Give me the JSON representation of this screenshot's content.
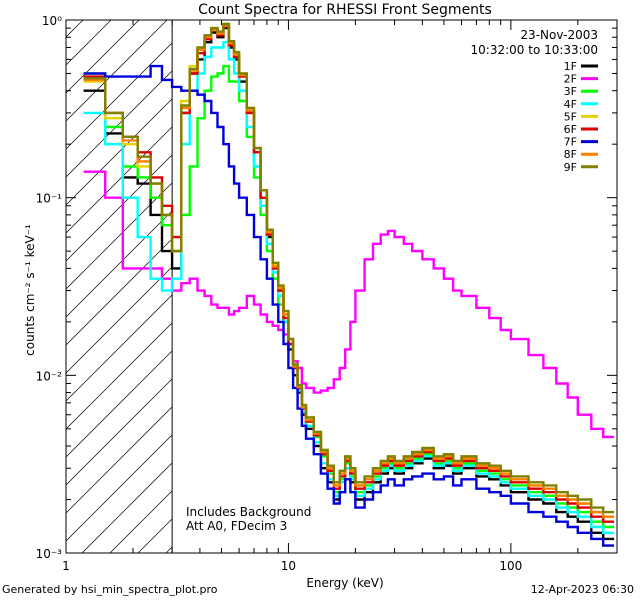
{
  "chart_data": {
    "type": "line",
    "title": "Count Spectra for RHESSI Front Segments",
    "xlabel": "Energy (keV)",
    "ylabel": "counts cm⁻² s⁻¹ keV⁻¹",
    "xscale": "log",
    "yscale": "log",
    "xlim": [
      1,
      300
    ],
    "ylim": [
      0.001,
      1
    ],
    "xticks": [
      {
        "value": 1,
        "label": "1"
      },
      {
        "value": 10,
        "label": "10"
      },
      {
        "value": 100,
        "label": "100"
      }
    ],
    "yticks": [
      {
        "value": 1,
        "label": "10⁰"
      },
      {
        "value": 0.1,
        "label": "10⁻¹"
      },
      {
        "value": 0.01,
        "label": "10⁻²"
      },
      {
        "value": 0.001,
        "label": "10⁻³"
      }
    ],
    "date": "23-Nov-2003",
    "time_range": "10:32:00 to 10:33:00",
    "annotations": [
      "Includes Background",
      "Att A0, FDecim 3"
    ],
    "attenuator_edge_keV": 3,
    "legend_position": "top-right",
    "series": [
      {
        "name": "1F",
        "color": "#000000",
        "x": [
          1.2,
          1.5,
          1.8,
          2.1,
          2.4,
          2.7,
          3.0,
          3.3,
          3.6,
          3.9,
          4.2,
          4.5,
          4.8,
          5.1,
          5.4,
          5.7,
          6.0,
          6.5,
          7,
          7.5,
          8,
          8.5,
          9,
          9.5,
          10,
          10.5,
          11,
          11.5,
          12,
          13,
          14,
          15,
          16,
          17,
          18,
          19,
          20,
          22,
          24,
          26,
          28,
          30,
          33,
          36,
          40,
          45,
          50,
          55,
          60,
          70,
          80,
          90,
          100,
          120,
          140,
          160,
          180,
          200,
          230,
          260
        ],
        "y": [
          0.4,
          0.23,
          0.13,
          0.12,
          0.08,
          0.05,
          0.04,
          0.3,
          0.5,
          0.6,
          0.75,
          0.85,
          0.8,
          0.9,
          0.7,
          0.6,
          0.45,
          0.3,
          0.18,
          0.1,
          0.06,
          0.04,
          0.03,
          0.02,
          0.014,
          0.01,
          0.008,
          0.006,
          0.005,
          0.004,
          0.003,
          0.0025,
          0.002,
          0.0025,
          0.003,
          0.0025,
          0.002,
          0.0022,
          0.0025,
          0.0028,
          0.003,
          0.0028,
          0.003,
          0.0032,
          0.0034,
          0.003,
          0.0031,
          0.0028,
          0.003,
          0.0027,
          0.0026,
          0.0024,
          0.0022,
          0.002,
          0.0019,
          0.0017,
          0.0016,
          0.0015,
          0.0013,
          0.0012
        ]
      },
      {
        "name": "2F",
        "color": "#ff00ff",
        "x": [
          1.2,
          1.5,
          1.8,
          2.1,
          2.4,
          2.7,
          3.0,
          3.3,
          3.6,
          3.9,
          4.2,
          4.5,
          4.8,
          5.1,
          5.4,
          5.7,
          6.0,
          6.5,
          7,
          7.5,
          8,
          8.5,
          9,
          9.5,
          10,
          10.5,
          11,
          11.5,
          12,
          13,
          14,
          15,
          16,
          17,
          18,
          19,
          20,
          22,
          24,
          26,
          28,
          30,
          33,
          36,
          40,
          45,
          50,
          55,
          60,
          70,
          80,
          90,
          100,
          120,
          140,
          160,
          180,
          200,
          230,
          260
        ],
        "y": [
          0.14,
          0.1,
          0.04,
          0.04,
          0.04,
          0.035,
          0.03,
          0.033,
          0.035,
          0.03,
          0.028,
          0.025,
          0.024,
          0.024,
          0.022,
          0.023,
          0.024,
          0.028,
          0.025,
          0.022,
          0.02,
          0.019,
          0.018,
          0.017,
          0.016,
          0.012,
          0.011,
          0.009,
          0.0085,
          0.008,
          0.0082,
          0.0085,
          0.0095,
          0.011,
          0.014,
          0.02,
          0.03,
          0.045,
          0.055,
          0.062,
          0.065,
          0.06,
          0.055,
          0.05,
          0.045,
          0.04,
          0.035,
          0.03,
          0.028,
          0.024,
          0.021,
          0.018,
          0.016,
          0.013,
          0.011,
          0.009,
          0.0075,
          0.006,
          0.005,
          0.0045
        ]
      },
      {
        "name": "3F",
        "color": "#00ff00",
        "x": [
          1.2,
          1.5,
          1.8,
          2.1,
          2.4,
          2.7,
          3.0,
          3.3,
          3.6,
          3.9,
          4.2,
          4.5,
          4.8,
          5.1,
          5.4,
          5.7,
          6.0,
          6.5,
          7,
          7.5,
          8,
          8.5,
          9,
          9.5,
          10,
          10.5,
          11,
          11.5,
          12,
          13,
          14,
          15,
          16,
          17,
          18,
          19,
          20,
          22,
          24,
          26,
          28,
          30,
          33,
          36,
          40,
          45,
          50,
          55,
          60,
          70,
          80,
          90,
          100,
          120,
          140,
          160,
          180,
          200,
          230,
          260
        ],
        "y": [
          0.5,
          0.25,
          0.15,
          0.13,
          0.1,
          0.07,
          0.05,
          0.08,
          0.15,
          0.28,
          0.4,
          0.48,
          0.5,
          0.55,
          0.45,
          0.45,
          0.35,
          0.22,
          0.13,
          0.08,
          0.05,
          0.035,
          0.025,
          0.02,
          0.015,
          0.011,
          0.0085,
          0.0065,
          0.0055,
          0.0045,
          0.0035,
          0.0028,
          0.0022,
          0.0026,
          0.0032,
          0.0027,
          0.0022,
          0.0024,
          0.0027,
          0.003,
          0.0032,
          0.003,
          0.0032,
          0.0034,
          0.0036,
          0.0032,
          0.0033,
          0.003,
          0.0032,
          0.0029,
          0.0028,
          0.0026,
          0.0024,
          0.0022,
          0.0021,
          0.0019,
          0.0018,
          0.0017,
          0.0015,
          0.0014
        ]
      },
      {
        "name": "4F",
        "color": "#00ffff",
        "x": [
          1.2,
          1.5,
          1.8,
          2.1,
          2.4,
          2.7,
          3.0,
          3.3,
          3.6,
          3.9,
          4.2,
          4.5,
          4.8,
          5.1,
          5.4,
          5.7,
          6.0,
          6.5,
          7,
          7.5,
          8,
          8.5,
          9,
          9.5,
          10,
          10.5,
          11,
          11.5,
          12,
          13,
          14,
          15,
          16,
          17,
          18,
          19,
          20,
          22,
          24,
          26,
          28,
          30,
          33,
          36,
          40,
          45,
          50,
          55,
          60,
          70,
          80,
          90,
          100,
          120,
          140,
          160,
          180,
          200,
          230,
          260
        ],
        "y": [
          0.3,
          0.2,
          0.1,
          0.06,
          0.035,
          0.03,
          0.035,
          0.2,
          0.4,
          0.5,
          0.62,
          0.7,
          0.7,
          0.75,
          0.6,
          0.5,
          0.4,
          0.25,
          0.15,
          0.09,
          0.055,
          0.038,
          0.028,
          0.02,
          0.015,
          0.011,
          0.0082,
          0.0062,
          0.0052,
          0.0042,
          0.0032,
          0.0026,
          0.0021,
          0.0025,
          0.003,
          0.0026,
          0.0021,
          0.0023,
          0.0026,
          0.0029,
          0.0031,
          0.0029,
          0.0031,
          0.0033,
          0.0035,
          0.0031,
          0.0032,
          0.0029,
          0.0031,
          0.0028,
          0.0027,
          0.0025,
          0.0023,
          0.0021,
          0.002,
          0.0018,
          0.0017,
          0.0016,
          0.0014,
          0.0013
        ]
      },
      {
        "name": "5F",
        "color": "#e6d200",
        "x": [
          1.2,
          1.5,
          1.8,
          2.1,
          2.4,
          2.7,
          3.0,
          3.3,
          3.6,
          3.9,
          4.2,
          4.5,
          4.8,
          5.1,
          5.4,
          5.7,
          6.0,
          6.5,
          7,
          7.5,
          8,
          8.5,
          9,
          9.5,
          10,
          10.5,
          11,
          11.5,
          12,
          13,
          14,
          15,
          16,
          17,
          18,
          19,
          20,
          22,
          24,
          26,
          28,
          30,
          33,
          36,
          40,
          45,
          50,
          55,
          60,
          70,
          80,
          90,
          100,
          120,
          140,
          160,
          180,
          200,
          230,
          260
        ],
        "y": [
          0.45,
          0.28,
          0.2,
          0.15,
          0.12,
          0.08,
          0.05,
          0.35,
          0.55,
          0.7,
          0.8,
          0.9,
          0.85,
          0.95,
          0.75,
          0.65,
          0.5,
          0.32,
          0.19,
          0.11,
          0.065,
          0.042,
          0.032,
          0.022,
          0.016,
          0.0115,
          0.0088,
          0.0068,
          0.0058,
          0.0048,
          0.0038,
          0.003,
          0.0024,
          0.0028,
          0.0034,
          0.0029,
          0.0024,
          0.0026,
          0.0029,
          0.0032,
          0.0034,
          0.0032,
          0.0034,
          0.0036,
          0.0038,
          0.0034,
          0.0035,
          0.0032,
          0.0034,
          0.0031,
          0.003,
          0.0028,
          0.0026,
          0.0024,
          0.0023,
          0.0021,
          0.002,
          0.0019,
          0.0017,
          0.0016
        ]
      },
      {
        "name": "6F",
        "color": "#dd0000",
        "x": [
          1.2,
          1.5,
          1.8,
          2.1,
          2.4,
          2.7,
          3.0,
          3.3,
          3.6,
          3.9,
          4.2,
          4.5,
          4.8,
          5.1,
          5.4,
          5.7,
          6.0,
          6.5,
          7,
          7.5,
          8,
          8.5,
          9,
          9.5,
          10,
          10.5,
          11,
          11.5,
          12,
          13,
          14,
          15,
          16,
          17,
          18,
          19,
          20,
          22,
          24,
          26,
          28,
          30,
          33,
          36,
          40,
          45,
          50,
          55,
          60,
          70,
          80,
          90,
          100,
          120,
          140,
          160,
          180,
          200,
          230,
          260
        ],
        "y": [
          0.48,
          0.3,
          0.22,
          0.18,
          0.13,
          0.09,
          0.06,
          0.3,
          0.5,
          0.65,
          0.78,
          0.88,
          0.82,
          0.92,
          0.72,
          0.62,
          0.48,
          0.3,
          0.18,
          0.1,
          0.062,
          0.04,
          0.03,
          0.021,
          0.015,
          0.011,
          0.0085,
          0.0065,
          0.0055,
          0.0046,
          0.0036,
          0.0029,
          0.0023,
          0.0027,
          0.0033,
          0.0028,
          0.0023,
          0.0025,
          0.0028,
          0.0031,
          0.0033,
          0.0031,
          0.0033,
          0.0035,
          0.0037,
          0.0033,
          0.0034,
          0.0031,
          0.0033,
          0.003,
          0.0029,
          0.0027,
          0.0025,
          0.0023,
          0.0022,
          0.002,
          0.0019,
          0.0018,
          0.0016,
          0.0015
        ]
      },
      {
        "name": "7F",
        "color": "#0000dd",
        "x": [
          1.2,
          1.5,
          1.8,
          2.1,
          2.4,
          2.7,
          3.0,
          3.3,
          3.6,
          3.9,
          4.2,
          4.5,
          4.8,
          5.1,
          5.4,
          5.7,
          6.0,
          6.5,
          7,
          7.5,
          8,
          8.5,
          9,
          9.5,
          10,
          10.5,
          11,
          11.5,
          12,
          13,
          14,
          15,
          16,
          17,
          18,
          19,
          20,
          22,
          24,
          26,
          28,
          30,
          33,
          36,
          40,
          45,
          50,
          55,
          60,
          70,
          80,
          90,
          100,
          120,
          140,
          160,
          180,
          200,
          230,
          260
        ],
        "y": [
          0.5,
          0.48,
          0.48,
          0.48,
          0.55,
          0.46,
          0.42,
          0.4,
          0.4,
          0.38,
          0.35,
          0.3,
          0.25,
          0.2,
          0.15,
          0.12,
          0.1,
          0.08,
          0.06,
          0.045,
          0.035,
          0.025,
          0.02,
          0.015,
          0.011,
          0.0085,
          0.0065,
          0.0052,
          0.0044,
          0.0036,
          0.0028,
          0.0023,
          0.0019,
          0.0022,
          0.0026,
          0.0022,
          0.0018,
          0.002,
          0.0022,
          0.0024,
          0.0026,
          0.0024,
          0.0026,
          0.0027,
          0.0028,
          0.0026,
          0.0027,
          0.0024,
          0.0026,
          0.0023,
          0.0022,
          0.0021,
          0.0019,
          0.0017,
          0.0016,
          0.0015,
          0.0014,
          0.0013,
          0.0012,
          0.0011
        ]
      },
      {
        "name": "8F",
        "color": "#ff8000",
        "x": [
          1.2,
          1.5,
          1.8,
          2.1,
          2.4,
          2.7,
          3.0,
          3.3,
          3.6,
          3.9,
          4.2,
          4.5,
          4.8,
          5.1,
          5.4,
          5.7,
          6.0,
          6.5,
          7,
          7.5,
          8,
          8.5,
          9,
          9.5,
          10,
          10.5,
          11,
          11.5,
          12,
          13,
          14,
          15,
          16,
          17,
          18,
          19,
          20,
          22,
          24,
          26,
          28,
          30,
          33,
          36,
          40,
          45,
          50,
          55,
          60,
          70,
          80,
          90,
          100,
          120,
          140,
          160,
          180,
          200,
          230,
          260
        ],
        "y": [
          0.46,
          0.3,
          0.21,
          0.16,
          0.12,
          0.08,
          0.05,
          0.32,
          0.52,
          0.68,
          0.8,
          0.88,
          0.84,
          0.93,
          0.74,
          0.64,
          0.49,
          0.31,
          0.19,
          0.11,
          0.064,
          0.041,
          0.031,
          0.022,
          0.016,
          0.0112,
          0.0086,
          0.0066,
          0.0056,
          0.0047,
          0.0037,
          0.003,
          0.0024,
          0.0028,
          0.0034,
          0.0029,
          0.0024,
          0.0026,
          0.0029,
          0.0032,
          0.0034,
          0.0032,
          0.0034,
          0.0036,
          0.0038,
          0.0034,
          0.0035,
          0.0032,
          0.0034,
          0.0031,
          0.003,
          0.0028,
          0.0026,
          0.0024,
          0.0023,
          0.0021,
          0.002,
          0.0019,
          0.0017,
          0.0016
        ]
      },
      {
        "name": "9F",
        "color": "#808000",
        "x": [
          1.2,
          1.5,
          1.8,
          2.1,
          2.4,
          2.7,
          3.0,
          3.3,
          3.6,
          3.9,
          4.2,
          4.5,
          4.8,
          5.1,
          5.4,
          5.7,
          6.0,
          6.5,
          7,
          7.5,
          8,
          8.5,
          9,
          9.5,
          10,
          10.5,
          11,
          11.5,
          12,
          13,
          14,
          15,
          16,
          17,
          18,
          19,
          20,
          22,
          24,
          26,
          28,
          30,
          33,
          36,
          40,
          45,
          50,
          55,
          60,
          70,
          80,
          90,
          100,
          120,
          140,
          160,
          180,
          200,
          230,
          260
        ],
        "y": [
          0.47,
          0.3,
          0.22,
          0.17,
          0.12,
          0.08,
          0.05,
          0.33,
          0.53,
          0.7,
          0.82,
          0.9,
          0.86,
          0.95,
          0.76,
          0.66,
          0.5,
          0.32,
          0.19,
          0.11,
          0.066,
          0.043,
          0.032,
          0.023,
          0.016,
          0.0115,
          0.0088,
          0.0068,
          0.0058,
          0.0048,
          0.0038,
          0.0031,
          0.0025,
          0.0029,
          0.0035,
          0.003,
          0.0025,
          0.0027,
          0.003,
          0.0033,
          0.0035,
          0.0033,
          0.0035,
          0.0037,
          0.0039,
          0.0035,
          0.0036,
          0.0033,
          0.0035,
          0.0032,
          0.0031,
          0.0029,
          0.0027,
          0.0025,
          0.0024,
          0.0022,
          0.0021,
          0.002,
          0.0018,
          0.0017
        ]
      }
    ]
  },
  "footer": {
    "generated_by": "Generated by hsi_min_spectra_plot.pro",
    "timestamp": "12-Apr-2023 06:30"
  }
}
